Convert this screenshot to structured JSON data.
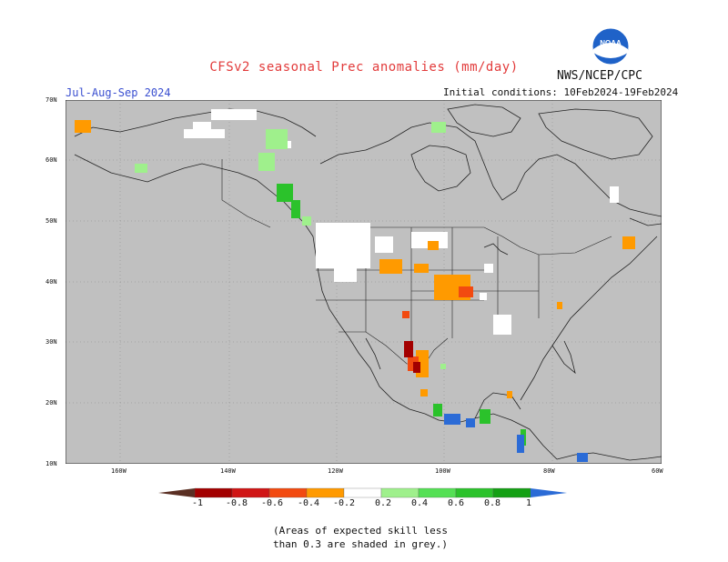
{
  "title": "CFSv2 seasonal Prec anomalies (mm/day)",
  "season": "Jul-Aug-Sep 2024",
  "initial_conditions": "Initial conditions: 10Feb2024-19Feb2024",
  "agency": "NWS/NCEP/CPC",
  "logo_text": "NOAA",
  "lat_labels": [
    "70N",
    "60N",
    "50N",
    "40N",
    "30N",
    "20N",
    "10N"
  ],
  "lon_labels": [
    "160W",
    "140W",
    "120W",
    "100W",
    "80W",
    "60W"
  ],
  "colorbar_labels": [
    "-1",
    "-0.8",
    "-0.6",
    "-0.4",
    "-0.2",
    "0.2",
    "0.4",
    "0.6",
    "0.8",
    "1"
  ],
  "colorbar_colors": [
    "#5a2f23",
    "#a30000",
    "#d01515",
    "#f24a10",
    "#ff9a00",
    "#ffffff",
    "#9ff08c",
    "#55e055",
    "#2bc22b",
    "#14a014",
    "#2b6bd6"
  ],
  "note_line1": "(Areas of expected skill less",
  "note_line2": "than 0.3 are shaded in grey.)",
  "colors": {
    "land_grey": "#c0c0c0",
    "title_red": "#e23b3b",
    "season_blue": "#3a4fd0"
  }
}
